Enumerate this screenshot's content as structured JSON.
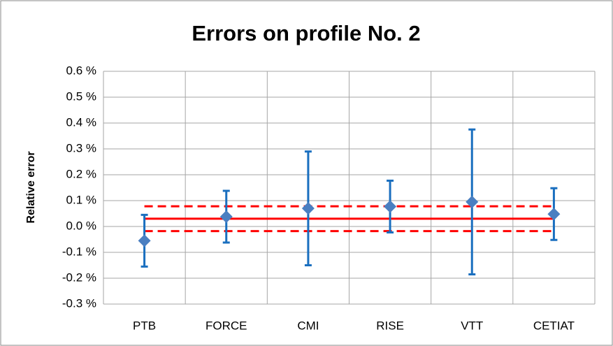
{
  "chart_data": {
    "type": "errorbar",
    "title": "Errors on profile No. 2",
    "y_label": "Relative error",
    "categories": [
      "PTB",
      "FORCE",
      "CMI",
      "RISE",
      "VTT",
      "CETIAT"
    ],
    "values": [
      -0.055,
      0.038,
      0.07,
      0.077,
      0.095,
      0.048
    ],
    "errors": [
      0.1,
      0.1,
      0.22,
      0.1,
      0.28,
      0.1
    ],
    "color": "#4a7fc1",
    "error_color": "#1a6fbf",
    "reference": {
      "value": 0.03,
      "upper": 0.078,
      "lower": -0.018,
      "color": "#ff0000"
    },
    "ylim": [
      -0.3,
      0.6
    ],
    "yticks": [
      {
        "value": -0.3,
        "label": "-0.3 %"
      },
      {
        "value": -0.2,
        "label": "-0.2 %"
      },
      {
        "value": -0.1,
        "label": "-0.1 %"
      },
      {
        "value": 0.0,
        "label": "0.0 %"
      },
      {
        "value": 0.1,
        "label": "0.1 %"
      },
      {
        "value": 0.2,
        "label": "0.2 %"
      },
      {
        "value": 0.3,
        "label": "0.3 %"
      },
      {
        "value": 0.4,
        "label": "0.4 %"
      },
      {
        "value": 0.5,
        "label": "0.5 %"
      },
      {
        "value": 0.6,
        "label": "0.6 %"
      }
    ],
    "grid": true
  }
}
